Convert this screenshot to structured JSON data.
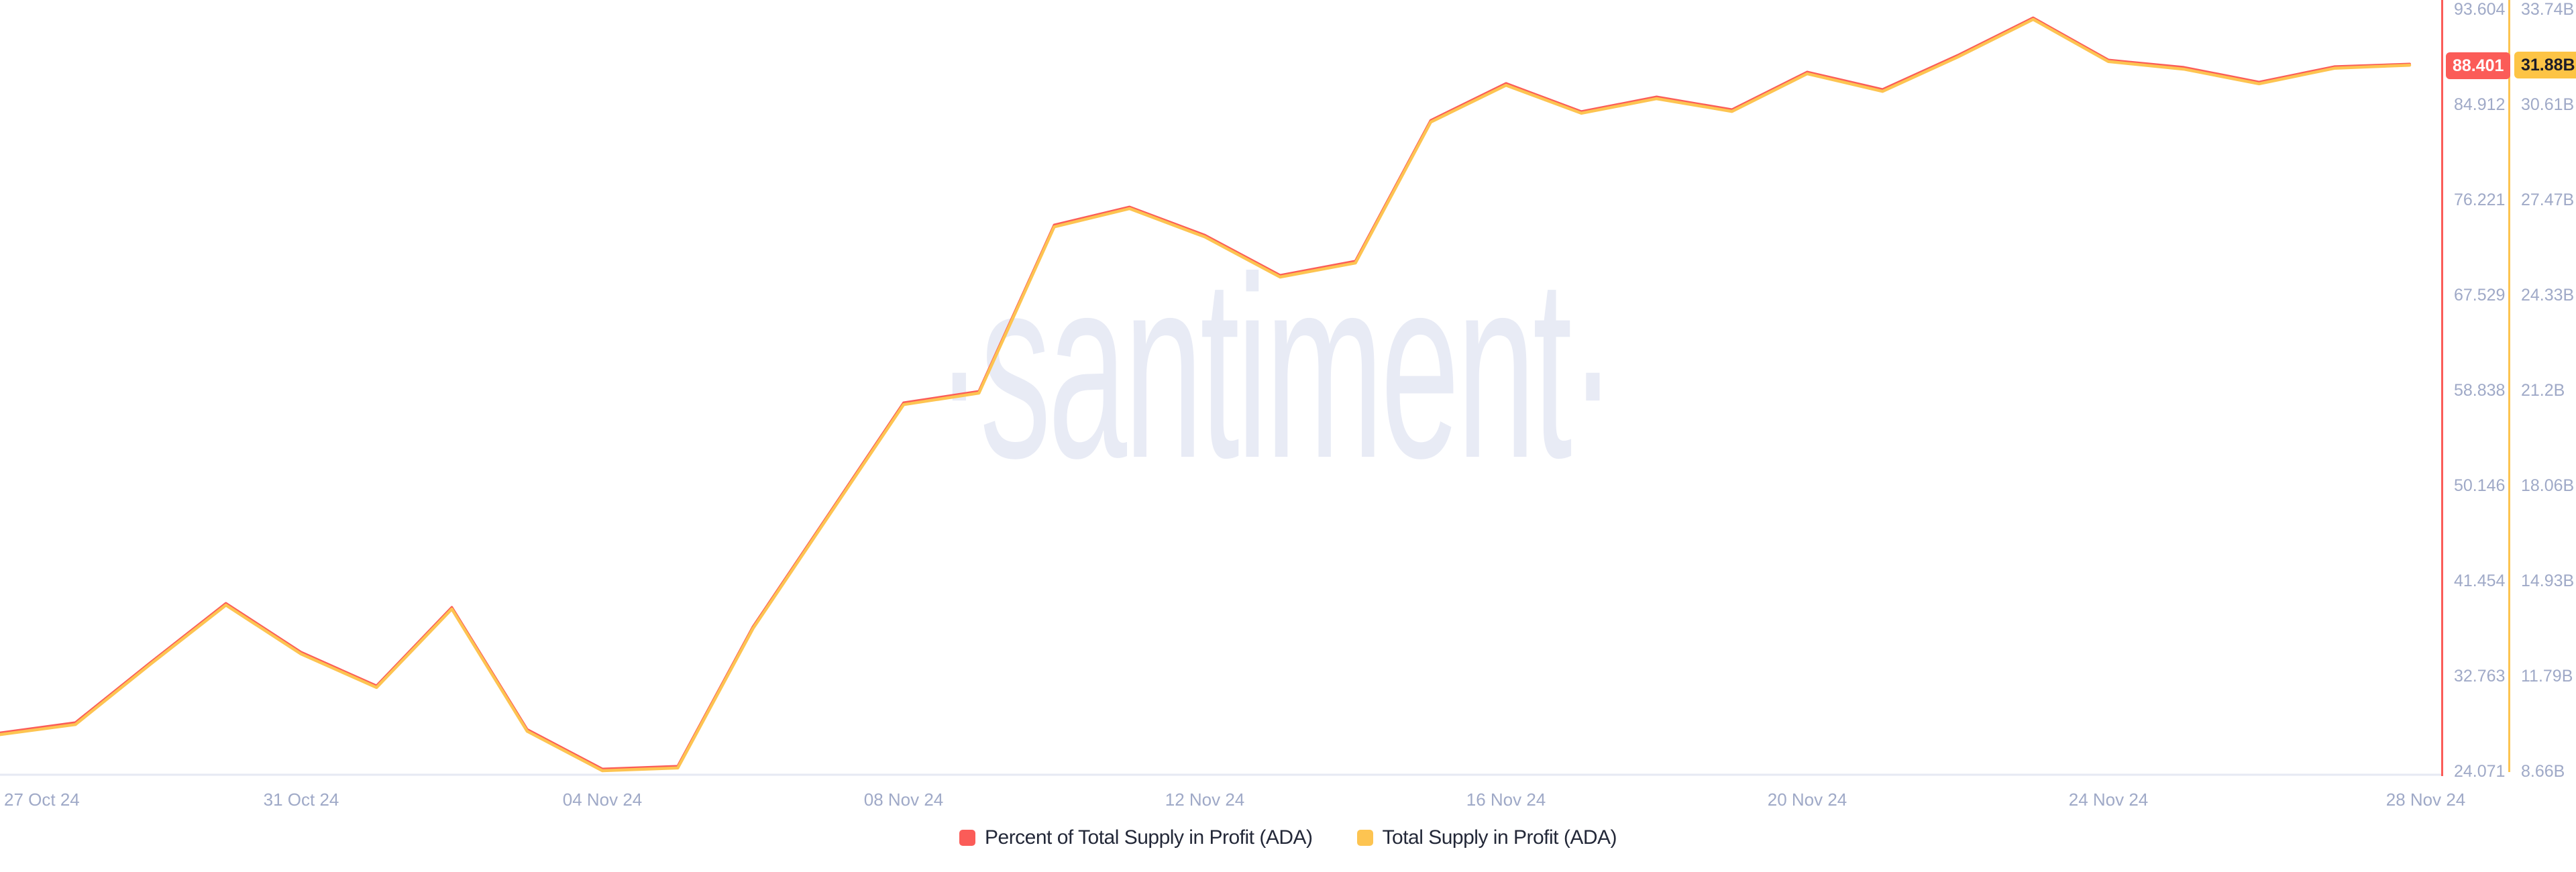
{
  "watermark": {
    "text": "·santiment·"
  },
  "colors": {
    "percent_line": "#fb5c58",
    "supply_line": "#fdc451",
    "percent_badge_bg": "#fb5c58",
    "supply_badge_bg": "#fdc445",
    "axis_label": "#9fa9c7",
    "x_axis_line": "#e6e9f3",
    "legend_text": "#232838",
    "watermark_color": "#e8ebf5"
  },
  "chart_data": {
    "type": "line",
    "title": "",
    "grid": false,
    "legend_position": "bottom",
    "dates": [
      "27 Oct 24",
      "28 Oct 24",
      "29 Oct 24",
      "30 Oct 24",
      "31 Oct 24",
      "01 Nov 24",
      "02 Nov 24",
      "03 Nov 24",
      "04 Nov 24",
      "05 Nov 24",
      "06 Nov 24",
      "07 Nov 24",
      "08 Nov 24",
      "09 Nov 24",
      "10 Nov 24",
      "11 Nov 24",
      "12 Nov 24",
      "13 Nov 24",
      "14 Nov 24",
      "15 Nov 24",
      "16 Nov 24",
      "17 Nov 24",
      "18 Nov 24",
      "19 Nov 24",
      "20 Nov 24",
      "21 Nov 24",
      "22 Nov 24",
      "23 Nov 24",
      "24 Nov 24",
      "25 Nov 24",
      "26 Nov 24",
      "27 Nov 24",
      "28 Nov 24"
    ],
    "x_tick_labels": [
      "27 Oct 24",
      "31 Oct 24",
      "04 Nov 24",
      "08 Nov 24",
      "12 Nov 24",
      "16 Nov 24",
      "20 Nov 24",
      "24 Nov 24",
      "28 Nov 24"
    ],
    "series": [
      {
        "name": "Percent of Total Supply in Profit (ADA)",
        "color": "#fb5c58",
        "axis": {
          "min": 24.071,
          "max": 93.604
        },
        "tick_labels": [
          "93.604",
          "84.912",
          "76.221",
          "67.529",
          "58.838",
          "50.146",
          "41.454",
          "32.763",
          "24.071"
        ],
        "values": [
          27.37,
          28.3,
          33.8,
          39.19,
          34.72,
          31.66,
          38.82,
          27.68,
          24.071,
          24.32,
          37.05,
          47.27,
          57.49,
          58.53,
          73.71,
          75.36,
          72.79,
          69.12,
          70.41,
          83.26,
          86.63,
          84.06,
          85.4,
          84.24,
          87.67,
          86.08,
          89.2,
          92.62,
          88.77,
          88.1,
          86.75,
          88.16,
          88.401
        ]
      },
      {
        "name": "Total Supply in Profit (ADA)",
        "color": "#fdc451",
        "unit": "B",
        "axis": {
          "min": 8.66,
          "max": 33.74
        },
        "tick_labels": [
          "33.74B",
          "30.61B",
          "27.47B",
          "24.33B",
          "21.2B",
          "18.06B",
          "14.93B",
          "11.79B",
          "8.66B"
        ],
        "values": [
          9.85,
          10.18,
          12.17,
          14.11,
          12.5,
          11.4,
          13.98,
          9.96,
          8.66,
          8.75,
          13.34,
          17.03,
          20.71,
          21.09,
          26.56,
          27.16,
          26.23,
          24.91,
          25.37,
          30.01,
          31.22,
          30.3,
          30.78,
          30.36,
          31.6,
          31.02,
          32.15,
          33.39,
          32.0,
          31.75,
          31.27,
          31.78,
          31.88
        ]
      }
    ],
    "last_values": {
      "percent": "88.401",
      "supply": "31.88B"
    }
  },
  "legend": {
    "items": [
      {
        "label": "Percent of Total Supply in Profit (ADA)",
        "color": "#fb5c58"
      },
      {
        "label": "Total Supply in Profit (ADA)",
        "color": "#fdc451"
      }
    ]
  }
}
